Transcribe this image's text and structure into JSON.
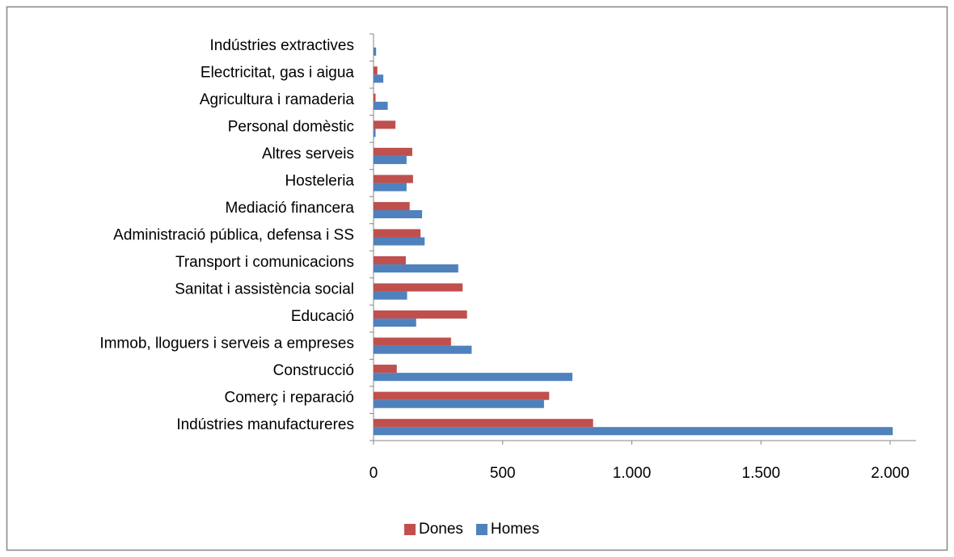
{
  "chart_data": {
    "type": "barh",
    "categories": [
      "Indústries extractives",
      "Electricitat, gas i aigua",
      "Agricultura i ramaderia",
      "Personal domèstic",
      "Altres serveis",
      "Hosteleria",
      "Mediació financera",
      "Administració pública, defensa i SS",
      "Transport i comunicacions",
      "Sanitat i assistència social",
      "Educació",
      "Immob, lloguers i serveis a empreses",
      "Construcció",
      "Comerç i reparació",
      "Indústries manufactureres"
    ],
    "series": [
      {
        "name": "Dones",
        "color": "#c0504d",
        "values": [
          0,
          15,
          8,
          85,
          150,
          153,
          140,
          182,
          125,
          345,
          362,
          300,
          90,
          680,
          850
        ]
      },
      {
        "name": "Homes",
        "color": "#4f81bd",
        "values": [
          10,
          38,
          55,
          8,
          128,
          128,
          188,
          198,
          328,
          130,
          165,
          380,
          770,
          660,
          2010
        ]
      }
    ],
    "xlim": [
      0,
      2100
    ],
    "xticks": [
      0,
      500,
      {
        "value": 1000,
        "label": "1.000"
      },
      {
        "value": 1500,
        "label": "1.500"
      },
      {
        "value": 2000,
        "label": "2.000"
      }
    ],
    "legend": "bottom"
  }
}
